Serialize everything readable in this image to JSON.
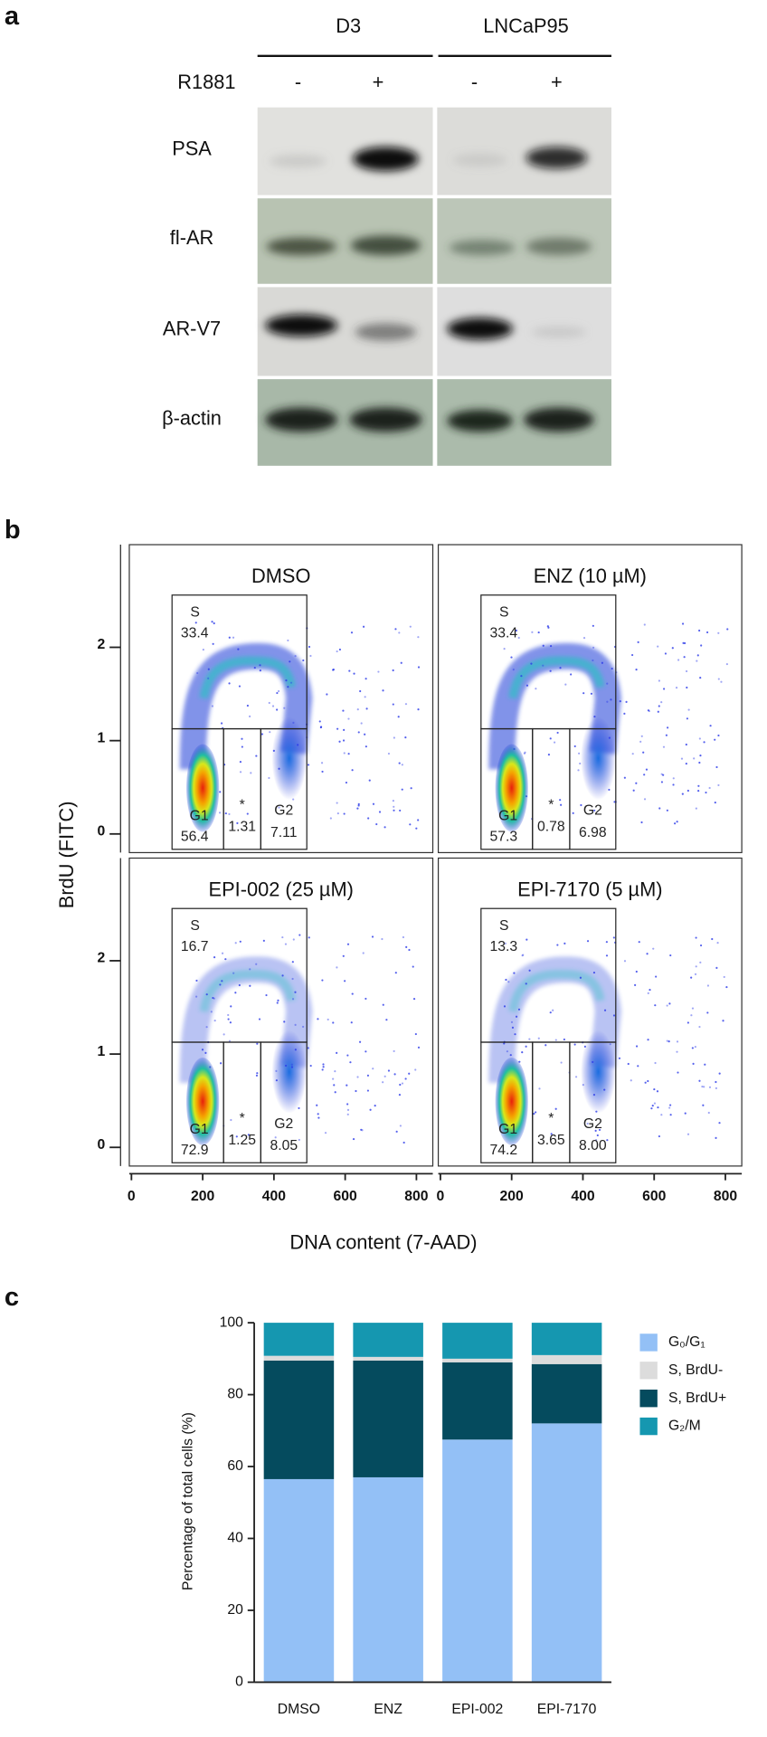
{
  "panel_a": {
    "label": "a",
    "groups": [
      "D3",
      "LNCaP95"
    ],
    "treatment": "R1881",
    "conditions": [
      "-",
      "+",
      "-",
      "+"
    ],
    "rows": [
      "PSA",
      "fl-AR",
      "AR-V7",
      "β-actin"
    ]
  },
  "panel_b": {
    "label": "b",
    "plots": [
      {
        "title": "DMSO",
        "s": "33.4",
        "g1": "56.4",
        "mid": "1.31",
        "g2": "7.11"
      },
      {
        "title": "ENZ (10 µM)",
        "s": "33.4",
        "g1": "57.3",
        "mid": "0.78",
        "g2": "6.98"
      },
      {
        "title": "EPI-002 (25 µM)",
        "s": "16.7",
        "g1": "72.9",
        "mid": "1.25",
        "g2": "8.05"
      },
      {
        "title": "EPI-7170 (5 µM)",
        "s": "13.3",
        "g1": "74.2",
        "mid": "3.65",
        "g2": "8.00"
      }
    ],
    "gate_labels": {
      "s": "S",
      "g1": "G1",
      "mid": "*",
      "g2": "G2"
    },
    "xlabel": "DNA content (7-AAD)",
    "ylabel": "BrdU (FITC)",
    "xlim": [
      -6,
      846
    ],
    "xticks": [
      0,
      200,
      400,
      600,
      800
    ],
    "ylim": [
      -0.2,
      3.1
    ],
    "yticks": [
      0,
      1,
      2
    ]
  },
  "panel_c_label": "c",
  "chart_data": {
    "type": "bar",
    "stacked": true,
    "ylabel": "Percentage of total cells (%)",
    "categories": [
      "DMSO",
      "ENZ",
      "EPI-002",
      "EPI-7170"
    ],
    "series": [
      {
        "name": "G₀/G₁",
        "color": "#93c0f6",
        "values": [
          56.5,
          57,
          67.5,
          72
        ]
      },
      {
        "name": "S, BrdU-",
        "color": "#dcdcdc",
        "values": [
          1.3,
          1,
          1,
          2.5
        ]
      },
      {
        "name": "S, BrdU+",
        "color": "#054b5e",
        "values": [
          33,
          32.5,
          21.5,
          16.5
        ]
      },
      {
        "name": "G₂/M",
        "color": "#1597b0",
        "values": [
          9.2,
          9.5,
          10,
          9
        ]
      }
    ],
    "ylim": [
      0,
      100
    ],
    "yticks": [
      0,
      20,
      40,
      60,
      80,
      100
    ]
  }
}
